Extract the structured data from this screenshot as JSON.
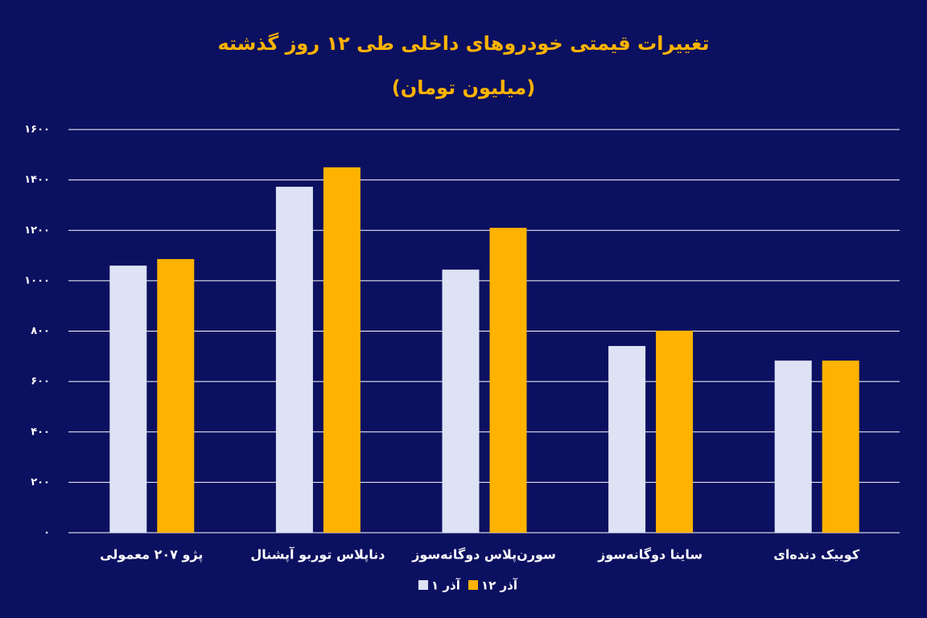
{
  "chart_data": {
    "type": "bar",
    "title": "تغییرات قیمتی خودروهای داخلی طی ۱۲ روز گذشته",
    "subtitle": "(میلیون تومان)",
    "categories": [
      "پژو ۲۰۷ معمولی",
      "دناپلاس توربو آپشنال",
      "سورن‌پلاس دوگانه‌سوز",
      "ساینا دوگانه‌سوز",
      "کوییک دنده‌ای"
    ],
    "series": [
      {
        "name": "۱ آذر",
        "color": "#dde3f5",
        "values": [
          1060,
          1373,
          1044,
          741,
          683
        ]
      },
      {
        "name": "۱۲ آذر",
        "color": "#ffb300",
        "values": [
          1086,
          1450,
          1210,
          802,
          683
        ]
      }
    ],
    "ylim": [
      0,
      1600
    ],
    "yticks": [
      {
        "value": 0,
        "label": "۰"
      },
      {
        "value": 200,
        "label": "۲۰۰"
      },
      {
        "value": 400,
        "label": "۴۰۰"
      },
      {
        "value": 600,
        "label": "۶۰۰"
      },
      {
        "value": 800,
        "label": "۸۰۰"
      },
      {
        "value": 1000,
        "label": "۱۰۰۰"
      },
      {
        "value": 1200,
        "label": "۱۲۰۰"
      },
      {
        "value": 1400,
        "label": "۱۴۰۰"
      },
      {
        "value": 1600,
        "label": "۱۶۰۰"
      }
    ],
    "grid": true
  }
}
